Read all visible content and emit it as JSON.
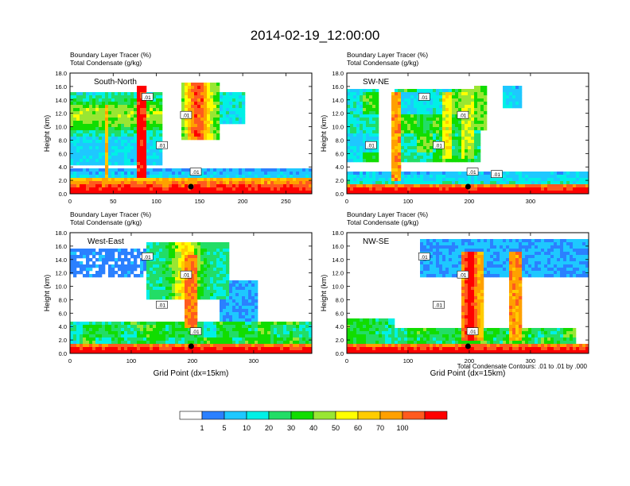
{
  "title": "2014-02-19_12:00:00",
  "footer_note": "Total Condensate Contours: .01 to .01 by .000",
  "colorbar": {
    "labels": [
      "1",
      "5",
      "10",
      "20",
      "30",
      "40",
      "50",
      "60",
      "70",
      "100"
    ],
    "colors": [
      "#ffffff",
      "#2b80ff",
      "#1ec8ff",
      "#00f0e6",
      "#22dd66",
      "#11dd00",
      "#99e633",
      "#ffff00",
      "#ffcc00",
      "#ffa000",
      "#ff5a1e",
      "#ff0000"
    ]
  },
  "chart_data": [
    {
      "type": "heatmap",
      "panel": "South-North",
      "label1": "Boundary Layer Tracer    (%)",
      "label2": "Total Condensate    (g/kg)",
      "ylabel": "Height (km)",
      "xlabel": "",
      "xlim": [
        0,
        280
      ],
      "ylim": [
        0,
        18
      ],
      "xticks": [
        0,
        50,
        100,
        150,
        200,
        250
      ],
      "yticks": [
        0,
        2,
        4,
        6,
        8,
        10,
        12,
        14,
        16,
        18
      ],
      "contour_labels": [
        ".01",
        ".01",
        ".01",
        ".01"
      ],
      "marker_x": 140
    },
    {
      "type": "heatmap",
      "panel": "SW-NE",
      "label1": "Boundary Layer Tracer    (%)",
      "label2": "Total Condensate    (g/kg)",
      "ylabel": "Height (km)",
      "xlabel": "",
      "xlim": [
        0,
        395
      ],
      "ylim": [
        0,
        18
      ],
      "xticks": [
        0,
        100,
        200,
        300
      ],
      "yticks": [
        0,
        2,
        4,
        6,
        8,
        10,
        12,
        14,
        16,
        18
      ],
      "contour_labels": [
        ".01",
        ".01",
        ".01",
        ".01",
        ".01",
        ".01"
      ],
      "marker_x": 198
    },
    {
      "type": "heatmap",
      "panel": "West-East",
      "label1": "Boundary Layer Tracer    (%)",
      "label2": "Total Condensate    (g/kg)",
      "ylabel": "Height (km)",
      "xlabel": "Grid Point (dx=15km)",
      "xlim": [
        0,
        395
      ],
      "ylim": [
        0,
        18
      ],
      "xticks": [
        0,
        100,
        200,
        300
      ],
      "yticks": [
        0,
        2,
        4,
        6,
        8,
        10,
        12,
        14,
        16,
        18
      ],
      "contour_labels": [
        ".01",
        ".01",
        ".01",
        ".01"
      ],
      "marker_x": 198
    },
    {
      "type": "heatmap",
      "panel": "NW-SE",
      "label1": "Boundary Layer Tracer    (%)",
      "label2": "Total Condensate    (g/kg)",
      "ylabel": "Height (km)",
      "xlabel": "Grid Point (dx=15km)",
      "xlim": [
        0,
        395
      ],
      "ylim": [
        0,
        18
      ],
      "xticks": [
        0,
        100,
        200,
        300
      ],
      "yticks": [
        0,
        2,
        4,
        6,
        8,
        10,
        12,
        14,
        16,
        18
      ],
      "contour_labels": [
        ".01",
        ".01",
        ".01",
        ".01"
      ],
      "marker_x": 198
    }
  ]
}
